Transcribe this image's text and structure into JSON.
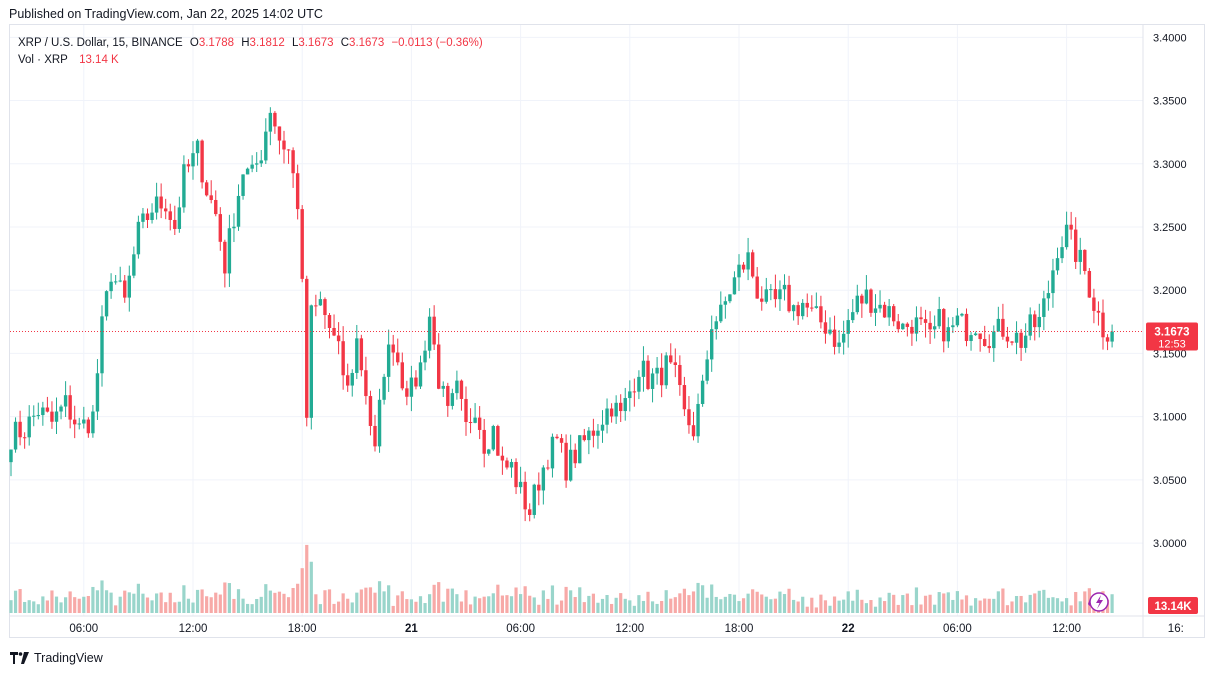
{
  "header": {
    "published": "Published on TradingView.com, Jan 22, 2025 14:02 UTC"
  },
  "legend": {
    "symbol": "XRP / U.S. Dollar, 15, BINANCE",
    "o_label": "O",
    "o_value": "3.1788",
    "h_label": "H",
    "h_value": "3.1812",
    "l_label": "L",
    "l_value": "3.1673",
    "c_label": "C",
    "c_value": "3.1673",
    "change": "−0.0113 (−0.36%)",
    "vol_label": "Vol · XRP",
    "vol_value": "13.14 K"
  },
  "footer": {
    "brand": "TradingView"
  },
  "colors": {
    "up": "#22ab94",
    "down": "#f23645",
    "up_vol": "#99d5cb",
    "down_vol": "#f7a9a7",
    "grid": "#f0f3fa",
    "text": "#131722"
  },
  "chart_data": {
    "type": "candlestick",
    "symbol": "XRP / U.S. Dollar",
    "interval": "15",
    "exchange": "BINANCE",
    "ylim": [
      2.97,
      3.405
    ],
    "y_ticks": [
      "3.4000",
      "3.3500",
      "3.3000",
      "3.2500",
      "3.2000",
      "3.1500",
      "3.1000",
      "3.0500",
      "3.0000"
    ],
    "x_ticks": [
      {
        "label": "06:00",
        "bar": 16,
        "bold": false
      },
      {
        "label": "12:00",
        "bar": 40,
        "bold": false
      },
      {
        "label": "18:00",
        "bar": 64,
        "bold": false
      },
      {
        "label": "21",
        "bar": 88,
        "bold": true
      },
      {
        "label": "06:00",
        "bar": 112,
        "bold": false
      },
      {
        "label": "12:00",
        "bar": 136,
        "bold": false
      },
      {
        "label": "18:00",
        "bar": 160,
        "bold": false
      },
      {
        "label": "22",
        "bar": 184,
        "bold": true
      },
      {
        "label": "06:00",
        "bar": 208,
        "bold": false
      },
      {
        "label": "12:00",
        "bar": 232,
        "bold": false
      },
      {
        "label": "16:",
        "bar": 256,
        "bold": false
      }
    ],
    "last_price": {
      "price": 3.1673,
      "label": "3.1673",
      "countdown": "12:53"
    },
    "last_volume_label": "13.14K",
    "close_path": [
      [
        0,
        3.085
      ],
      [
        3,
        3.09
      ],
      [
        6,
        3.105
      ],
      [
        9,
        3.095
      ],
      [
        12,
        3.11
      ],
      [
        15,
        3.09
      ],
      [
        18,
        3.1
      ],
      [
        20,
        3.17
      ],
      [
        22,
        3.215
      ],
      [
        25,
        3.19
      ],
      [
        28,
        3.245
      ],
      [
        31,
        3.265
      ],
      [
        34,
        3.27
      ],
      [
        36,
        3.25
      ],
      [
        38,
        3.29
      ],
      [
        41,
        3.31
      ],
      [
        43,
        3.28
      ],
      [
        45,
        3.26
      ],
      [
        47,
        3.22
      ],
      [
        49,
        3.26
      ],
      [
        51,
        3.295
      ],
      [
        53,
        3.29
      ],
      [
        55,
        3.31
      ],
      [
        57,
        3.345
      ],
      [
        59,
        3.32
      ],
      [
        61,
        3.31
      ],
      [
        62,
        3.29
      ],
      [
        63,
        3.27
      ],
      [
        64,
        3.2
      ],
      [
        65,
        3.1
      ],
      [
        66,
        3.18
      ],
      [
        68,
        3.19
      ],
      [
        70,
        3.17
      ],
      [
        72,
        3.15
      ],
      [
        74,
        3.12
      ],
      [
        76,
        3.16
      ],
      [
        78,
        3.12
      ],
      [
        80,
        3.07
      ],
      [
        82,
        3.14
      ],
      [
        84,
        3.16
      ],
      [
        86,
        3.13
      ],
      [
        88,
        3.12
      ],
      [
        90,
        3.14
      ],
      [
        92,
        3.18
      ],
      [
        94,
        3.13
      ],
      [
        96,
        3.1
      ],
      [
        98,
        3.12
      ],
      [
        100,
        3.09
      ],
      [
        102,
        3.11
      ],
      [
        104,
        3.08
      ],
      [
        106,
        3.09
      ],
      [
        108,
        3.06
      ],
      [
        110,
        3.06
      ],
      [
        112,
        3.04
      ],
      [
        114,
        3.025
      ],
      [
        116,
        3.05
      ],
      [
        118,
        3.07
      ],
      [
        120,
        3.08
      ],
      [
        122,
        3.06
      ],
      [
        124,
        3.07
      ],
      [
        126,
        3.08
      ],
      [
        128,
        3.09
      ],
      [
        130,
        3.1
      ],
      [
        132,
        3.11
      ],
      [
        134,
        3.1
      ],
      [
        136,
        3.12
      ],
      [
        138,
        3.14
      ],
      [
        140,
        3.13
      ],
      [
        142,
        3.13
      ],
      [
        144,
        3.14
      ],
      [
        146,
        3.13
      ],
      [
        148,
        3.1
      ],
      [
        150,
        3.09
      ],
      [
        152,
        3.12
      ],
      [
        154,
        3.175
      ],
      [
        156,
        3.18
      ],
      [
        158,
        3.2
      ],
      [
        160,
        3.215
      ],
      [
        162,
        3.225
      ],
      [
        164,
        3.2
      ],
      [
        166,
        3.19
      ],
      [
        168,
        3.19
      ],
      [
        170,
        3.195
      ],
      [
        172,
        3.185
      ],
      [
        174,
        3.19
      ],
      [
        176,
        3.18
      ],
      [
        178,
        3.175
      ],
      [
        180,
        3.17
      ],
      [
        182,
        3.155
      ],
      [
        184,
        3.175
      ],
      [
        186,
        3.19
      ],
      [
        188,
        3.195
      ],
      [
        190,
        3.19
      ],
      [
        192,
        3.185
      ],
      [
        194,
        3.18
      ],
      [
        196,
        3.17
      ],
      [
        198,
        3.175
      ],
      [
        200,
        3.17
      ],
      [
        202,
        3.16
      ],
      [
        204,
        3.175
      ],
      [
        206,
        3.165
      ],
      [
        208,
        3.175
      ],
      [
        210,
        3.17
      ],
      [
        212,
        3.175
      ],
      [
        214,
        3.165
      ],
      [
        216,
        3.165
      ],
      [
        218,
        3.17
      ],
      [
        220,
        3.165
      ],
      [
        222,
        3.16
      ],
      [
        224,
        3.17
      ],
      [
        226,
        3.175
      ],
      [
        228,
        3.2
      ],
      [
        230,
        3.235
      ],
      [
        232,
        3.245
      ],
      [
        234,
        3.23
      ],
      [
        236,
        3.215
      ],
      [
        238,
        3.19
      ],
      [
        240,
        3.17
      ],
      [
        242,
        3.1673
      ]
    ]
  }
}
